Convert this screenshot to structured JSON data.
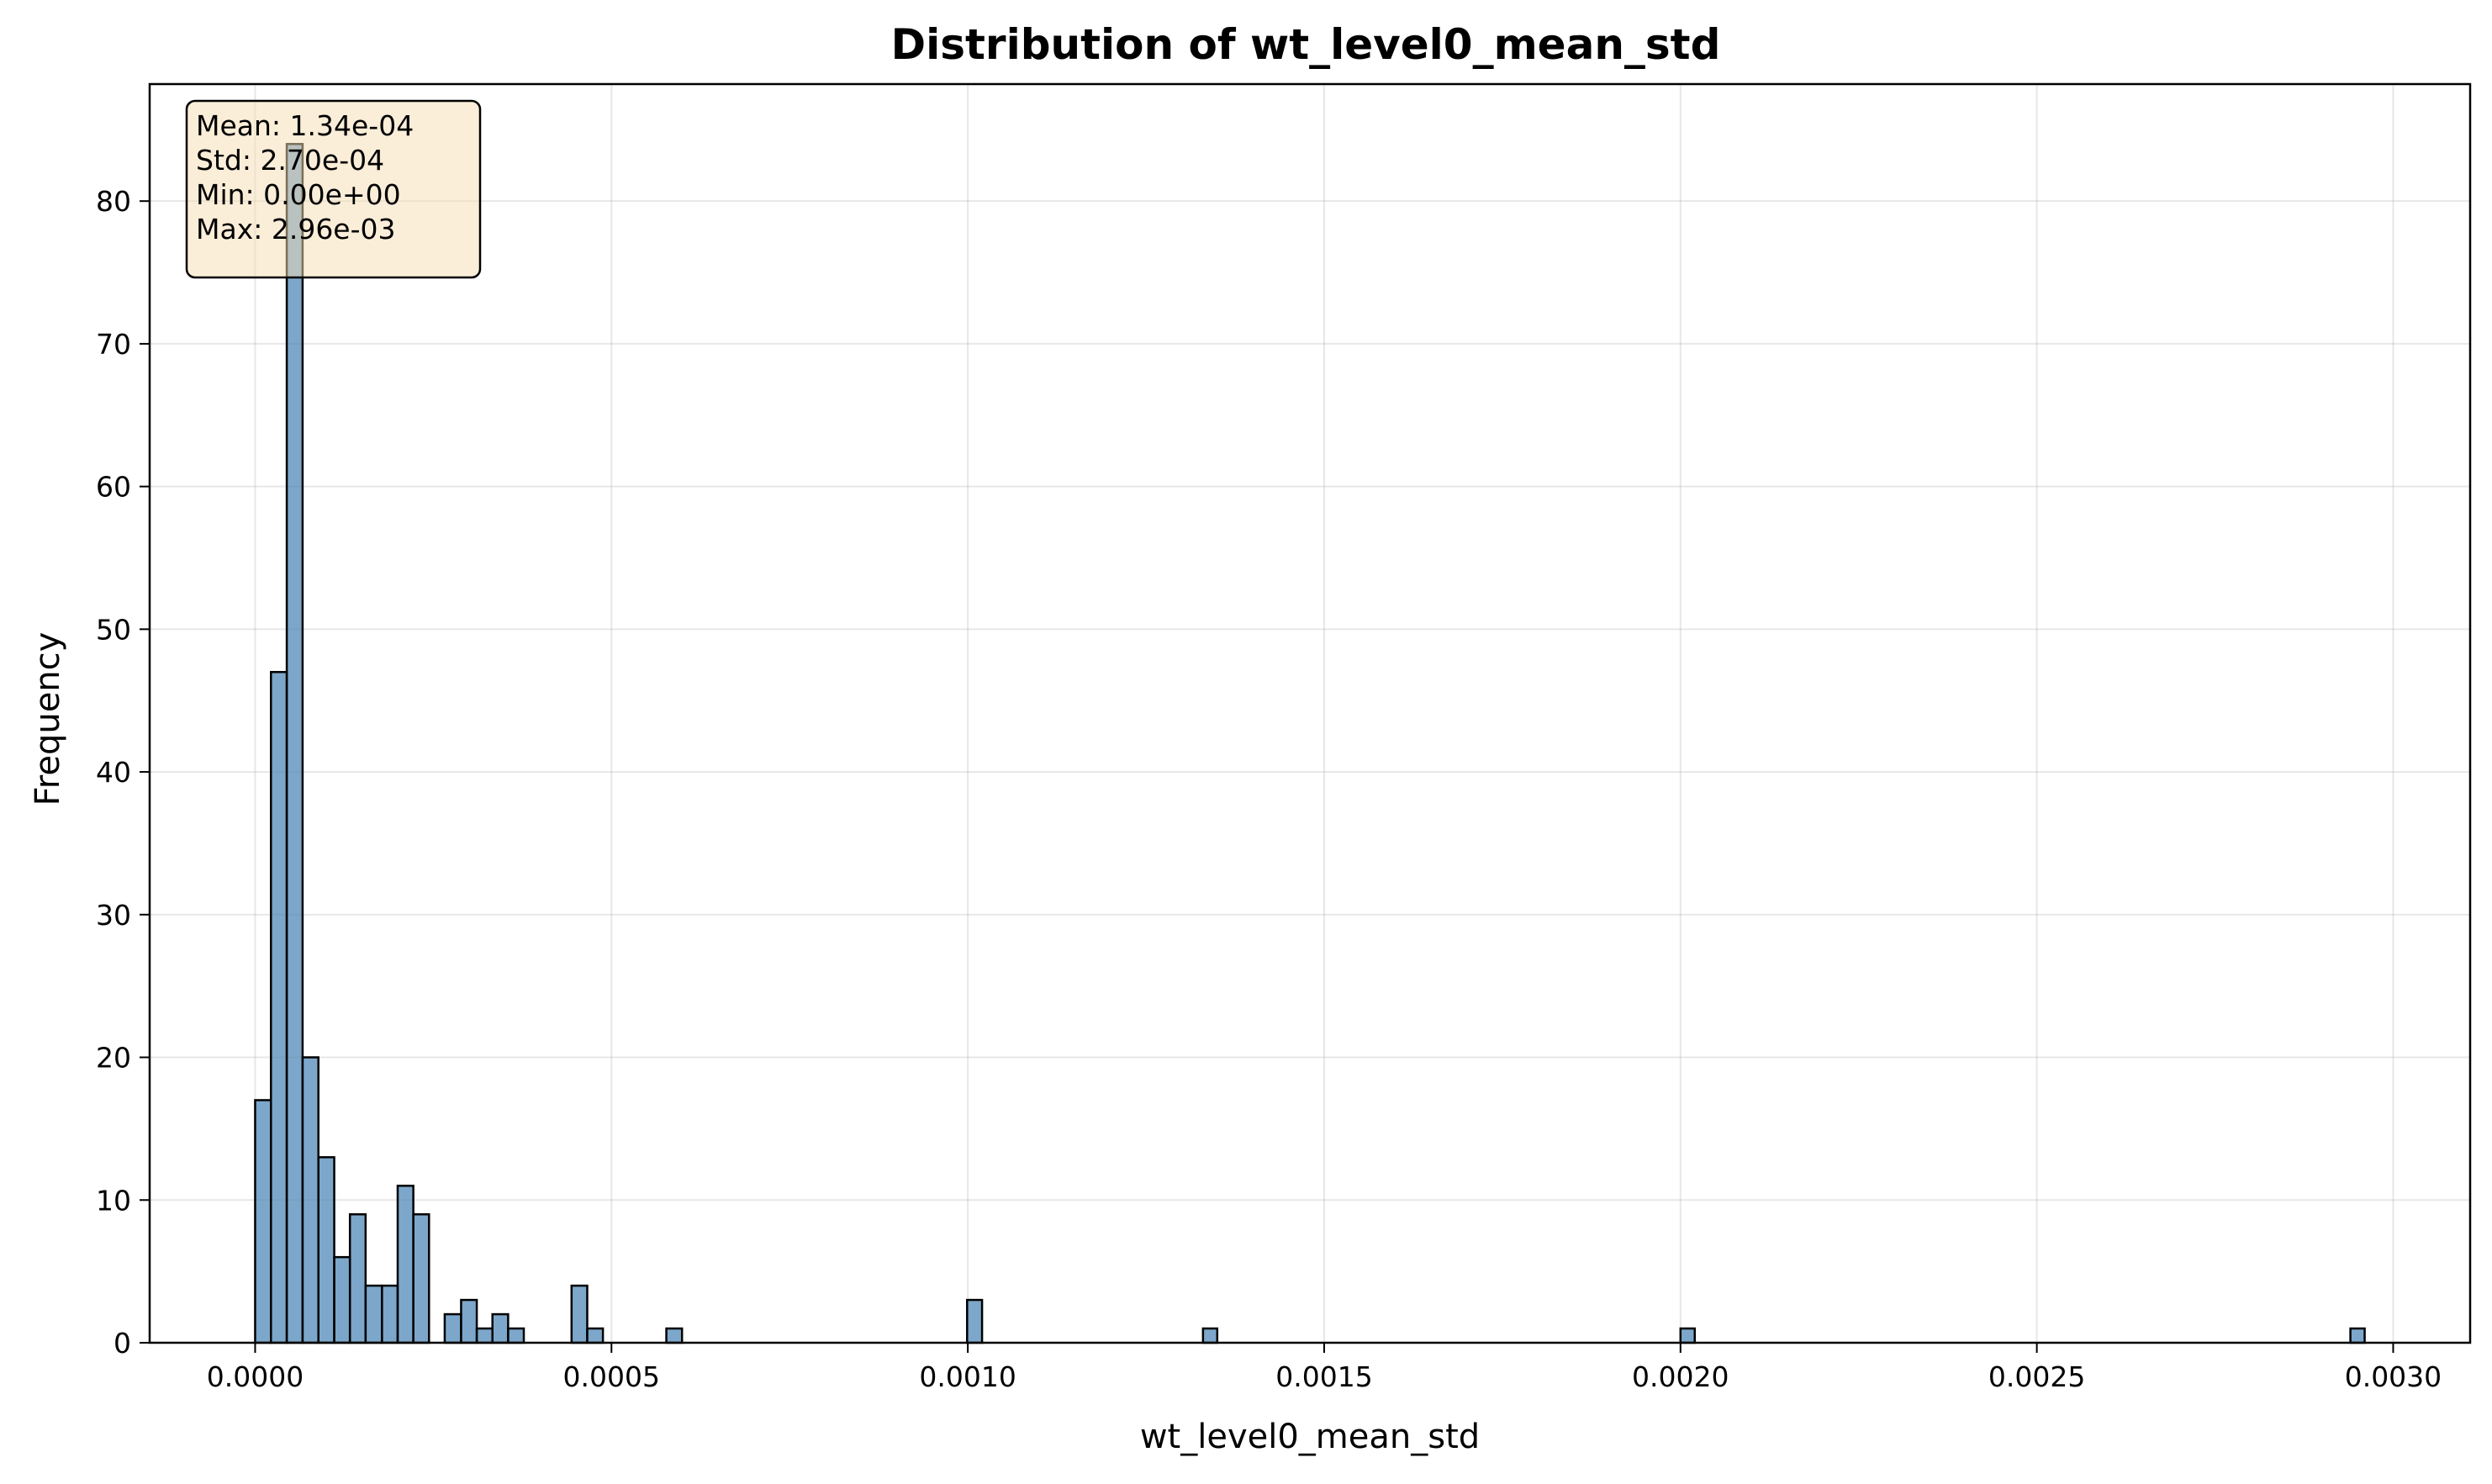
{
  "chart_data": {
    "type": "bar",
    "title": "Distribution of wt_level0_mean_std",
    "xlabel": "wt_level0_mean_std",
    "ylabel": "Frequency",
    "xlim": [
      -0.000148,
      0.003108
    ],
    "ylim": [
      0,
      88.2
    ],
    "x_ticks": [
      {
        "value": 0.0,
        "label": "0.0000"
      },
      {
        "value": 0.0005,
        "label": "0.0005"
      },
      {
        "value": 0.001,
        "label": "0.0010"
      },
      {
        "value": 0.0015,
        "label": "0.0015"
      },
      {
        "value": 0.002,
        "label": "0.0020"
      },
      {
        "value": 0.0025,
        "label": "0.0025"
      },
      {
        "value": 0.003,
        "label": "0.0030"
      }
    ],
    "y_ticks": [
      {
        "value": 0,
        "label": "0"
      },
      {
        "value": 10,
        "label": "10"
      },
      {
        "value": 20,
        "label": "20"
      },
      {
        "value": 30,
        "label": "30"
      },
      {
        "value": 40,
        "label": "40"
      },
      {
        "value": 50,
        "label": "50"
      },
      {
        "value": 60,
        "label": "60"
      },
      {
        "value": 70,
        "label": "70"
      },
      {
        "value": 80,
        "label": "80"
      }
    ],
    "grid": true,
    "bar_color": "#4682b4",
    "edge_color": "#000000",
    "bins": [
      {
        "x0": 0.0,
        "x1": 2.22e-05,
        "count": 17
      },
      {
        "x0": 2.22e-05,
        "x1": 4.44e-05,
        "count": 47
      },
      {
        "x0": 4.44e-05,
        "x1": 6.66e-05,
        "count": 84
      },
      {
        "x0": 6.66e-05,
        "x1": 8.88e-05,
        "count": 20
      },
      {
        "x0": 8.88e-05,
        "x1": 0.000111,
        "count": 13
      },
      {
        "x0": 0.000111,
        "x1": 0.000133,
        "count": 6
      },
      {
        "x0": 0.000133,
        "x1": 0.000155,
        "count": 9
      },
      {
        "x0": 0.000155,
        "x1": 0.000178,
        "count": 4
      },
      {
        "x0": 0.000178,
        "x1": 0.0002,
        "count": 4
      },
      {
        "x0": 0.0002,
        "x1": 0.000222,
        "count": 11
      },
      {
        "x0": 0.000222,
        "x1": 0.000244,
        "count": 9
      },
      {
        "x0": 0.000266,
        "x1": 0.000289,
        "count": 2
      },
      {
        "x0": 0.000289,
        "x1": 0.000311,
        "count": 3
      },
      {
        "x0": 0.000311,
        "x1": 0.000333,
        "count": 1
      },
      {
        "x0": 0.000333,
        "x1": 0.000355,
        "count": 2
      },
      {
        "x0": 0.000355,
        "x1": 0.000377,
        "count": 1
      },
      {
        "x0": 0.000444,
        "x1": 0.000466,
        "count": 4
      },
      {
        "x0": 0.000466,
        "x1": 0.000488,
        "count": 1
      },
      {
        "x0": 0.000577,
        "x1": 0.000599,
        "count": 1
      },
      {
        "x0": 0.000999,
        "x1": 0.00102,
        "count": 3
      },
      {
        "x0": 0.00133,
        "x1": 0.00135,
        "count": 1
      },
      {
        "x0": 0.002,
        "x1": 0.00202,
        "count": 1
      },
      {
        "x0": 0.00294,
        "x1": 0.00296,
        "count": 1
      }
    ],
    "stats_box": {
      "lines": [
        "Mean: 1.34e-04",
        "Std: 2.70e-04",
        "Min: 0.00e+00",
        "Max: 2.96e-03"
      ],
      "placement": "top-left",
      "fill": "#f5deb3",
      "border": "#000000"
    }
  }
}
